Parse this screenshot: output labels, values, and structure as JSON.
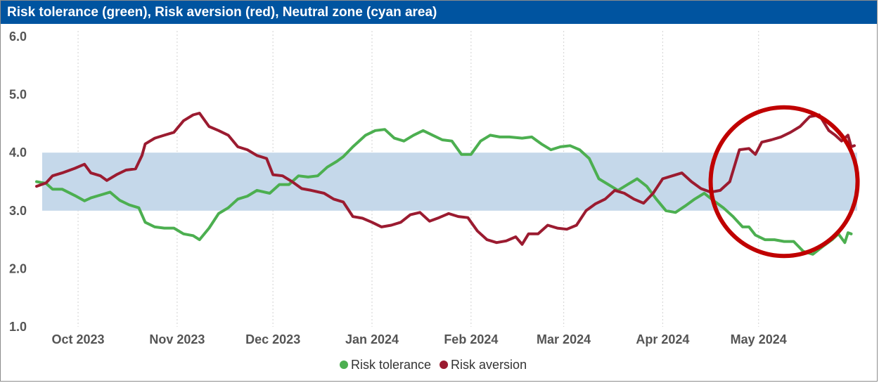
{
  "title": "Risk tolerance (green), Risk aversion (red), Neutral zone (cyan area)",
  "colors": {
    "title_bar": "#0054a0",
    "risk_tolerance": "#4caf50",
    "risk_aversion": "#9b1b30",
    "neutral_zone": "#c5d8ea",
    "highlight_ellipse": "#c00000",
    "gridline": "#d9d9d9"
  },
  "chart_data": {
    "type": "line",
    "title": "Risk tolerance (green), Risk aversion (red), Neutral zone (cyan area)",
    "xlabel": "",
    "ylabel": "",
    "x_range": [
      "2023-09-18",
      "2024-05-31"
    ],
    "ylim": [
      1.0,
      6.0
    ],
    "y_ticks": [
      "6.0",
      "5.0",
      "4.0",
      "3.0",
      "2.0",
      "1.0"
    ],
    "x_ticks": [
      {
        "label": "Oct 2023",
        "date": "2023-10-01"
      },
      {
        "label": "Nov 2023",
        "date": "2023-11-01"
      },
      {
        "label": "Dec 2023",
        "date": "2023-12-01"
      },
      {
        "label": "Jan 2024",
        "date": "2024-01-01"
      },
      {
        "label": "Feb 2024",
        "date": "2024-02-01"
      },
      {
        "label": "Mar 2024",
        "date": "2024-03-01"
      },
      {
        "label": "Apr 2024",
        "date": "2024-04-01"
      },
      {
        "label": "May 2024",
        "date": "2024-05-01"
      }
    ],
    "grid": {
      "vertical": true,
      "style": "dotted",
      "horizontal": false
    },
    "neutral_zone": {
      "from": 3.0,
      "to": 4.0
    },
    "legend_position": "bottom",
    "highlight": {
      "shape": "ellipse",
      "center": [
        "2024-05-09",
        3.5
      ],
      "half_width_days": 23,
      "half_height": 1.28
    },
    "series": [
      {
        "name": "Risk tolerance",
        "color_key": "risk_tolerance",
        "points": [
          [
            "2023-09-18",
            3.5
          ],
          [
            "2023-09-21",
            3.47
          ],
          [
            "2023-09-23",
            3.37
          ],
          [
            "2023-09-26",
            3.37
          ],
          [
            "2023-09-30",
            3.26
          ],
          [
            "2023-10-03",
            3.17
          ],
          [
            "2023-10-05",
            3.22
          ],
          [
            "2023-10-08",
            3.27
          ],
          [
            "2023-10-11",
            3.32
          ],
          [
            "2023-10-14",
            3.18
          ],
          [
            "2023-10-17",
            3.1
          ],
          [
            "2023-10-20",
            3.05
          ],
          [
            "2023-10-22",
            2.8
          ],
          [
            "2023-10-25",
            2.72
          ],
          [
            "2023-10-28",
            2.7
          ],
          [
            "2023-10-31",
            2.7
          ],
          [
            "2023-11-03",
            2.6
          ],
          [
            "2023-11-06",
            2.57
          ],
          [
            "2023-11-08",
            2.5
          ],
          [
            "2023-11-11",
            2.7
          ],
          [
            "2023-11-14",
            2.95
          ],
          [
            "2023-11-17",
            3.05
          ],
          [
            "2023-11-20",
            3.2
          ],
          [
            "2023-11-23",
            3.25
          ],
          [
            "2023-11-26",
            3.35
          ],
          [
            "2023-11-30",
            3.3
          ],
          [
            "2023-12-03",
            3.45
          ],
          [
            "2023-12-06",
            3.45
          ],
          [
            "2023-12-09",
            3.6
          ],
          [
            "2023-12-12",
            3.58
          ],
          [
            "2023-12-15",
            3.6
          ],
          [
            "2023-12-18",
            3.75
          ],
          [
            "2023-12-21",
            3.85
          ],
          [
            "2023-12-23",
            3.93
          ],
          [
            "2023-12-26",
            4.1
          ],
          [
            "2023-12-30",
            4.3
          ],
          [
            "2024-01-02",
            4.38
          ],
          [
            "2024-01-05",
            4.4
          ],
          [
            "2024-01-08",
            4.25
          ],
          [
            "2024-01-11",
            4.2
          ],
          [
            "2024-01-14",
            4.3
          ],
          [
            "2024-01-17",
            4.38
          ],
          [
            "2024-01-20",
            4.3
          ],
          [
            "2024-01-23",
            4.22
          ],
          [
            "2024-01-26",
            4.2
          ],
          [
            "2024-01-29",
            3.97
          ],
          [
            "2024-02-01",
            3.97
          ],
          [
            "2024-02-04",
            4.2
          ],
          [
            "2024-02-07",
            4.3
          ],
          [
            "2024-02-10",
            4.27
          ],
          [
            "2024-02-13",
            4.27
          ],
          [
            "2024-02-17",
            4.25
          ],
          [
            "2024-02-20",
            4.27
          ],
          [
            "2024-02-23",
            4.15
          ],
          [
            "2024-02-26",
            4.05
          ],
          [
            "2024-02-29",
            4.1
          ],
          [
            "2024-03-03",
            4.12
          ],
          [
            "2024-03-06",
            4.05
          ],
          [
            "2024-03-09",
            3.9
          ],
          [
            "2024-03-12",
            3.55
          ],
          [
            "2024-03-15",
            3.45
          ],
          [
            "2024-03-18",
            3.35
          ],
          [
            "2024-03-21",
            3.45
          ],
          [
            "2024-03-24",
            3.55
          ],
          [
            "2024-03-27",
            3.42
          ],
          [
            "2024-03-30",
            3.2
          ],
          [
            "2024-04-02",
            3.0
          ],
          [
            "2024-04-05",
            2.97
          ],
          [
            "2024-04-08",
            3.08
          ],
          [
            "2024-04-11",
            3.2
          ],
          [
            "2024-04-14",
            3.3
          ],
          [
            "2024-04-17",
            3.17
          ],
          [
            "2024-04-20",
            3.05
          ],
          [
            "2024-04-23",
            2.9
          ],
          [
            "2024-04-26",
            2.72
          ],
          [
            "2024-04-28",
            2.72
          ],
          [
            "2024-04-30",
            2.58
          ],
          [
            "2024-05-03",
            2.5
          ],
          [
            "2024-05-06",
            2.5
          ],
          [
            "2024-05-09",
            2.47
          ],
          [
            "2024-05-12",
            2.47
          ],
          [
            "2024-05-15",
            2.3
          ],
          [
            "2024-05-18",
            2.25
          ],
          [
            "2024-05-21",
            2.38
          ],
          [
            "2024-05-24",
            2.5
          ],
          [
            "2024-05-26",
            2.6
          ],
          [
            "2024-05-28",
            2.45
          ],
          [
            "2024-05-29",
            2.62
          ],
          [
            "2024-05-30",
            2.6
          ]
        ]
      },
      {
        "name": "Risk aversion",
        "color_key": "risk_aversion",
        "points": [
          [
            "2023-09-18",
            3.42
          ],
          [
            "2023-09-21",
            3.48
          ],
          [
            "2023-09-23",
            3.6
          ],
          [
            "2023-09-26",
            3.65
          ],
          [
            "2023-09-30",
            3.73
          ],
          [
            "2023-10-03",
            3.8
          ],
          [
            "2023-10-05",
            3.65
          ],
          [
            "2023-10-08",
            3.6
          ],
          [
            "2023-10-10",
            3.52
          ],
          [
            "2023-10-13",
            3.62
          ],
          [
            "2023-10-16",
            3.7
          ],
          [
            "2023-10-19",
            3.72
          ],
          [
            "2023-10-21",
            3.95
          ],
          [
            "2023-10-22",
            4.15
          ],
          [
            "2023-10-25",
            4.25
          ],
          [
            "2023-10-28",
            4.3
          ],
          [
            "2023-10-31",
            4.35
          ],
          [
            "2023-11-03",
            4.55
          ],
          [
            "2023-11-06",
            4.65
          ],
          [
            "2023-11-08",
            4.68
          ],
          [
            "2023-11-11",
            4.45
          ],
          [
            "2023-11-14",
            4.38
          ],
          [
            "2023-11-17",
            4.3
          ],
          [
            "2023-11-20",
            4.1
          ],
          [
            "2023-11-23",
            4.05
          ],
          [
            "2023-11-26",
            3.95
          ],
          [
            "2023-11-29",
            3.9
          ],
          [
            "2023-12-01",
            3.62
          ],
          [
            "2023-12-04",
            3.6
          ],
          [
            "2023-12-07",
            3.5
          ],
          [
            "2023-12-10",
            3.38
          ],
          [
            "2023-12-13",
            3.35
          ],
          [
            "2023-12-17",
            3.3
          ],
          [
            "2023-12-20",
            3.2
          ],
          [
            "2023-12-23",
            3.15
          ],
          [
            "2023-12-26",
            2.9
          ],
          [
            "2023-12-29",
            2.87
          ],
          [
            "2024-01-01",
            2.8
          ],
          [
            "2024-01-04",
            2.72
          ],
          [
            "2024-01-07",
            2.75
          ],
          [
            "2024-01-10",
            2.8
          ],
          [
            "2024-01-13",
            2.93
          ],
          [
            "2024-01-16",
            2.97
          ],
          [
            "2024-01-19",
            2.82
          ],
          [
            "2024-01-22",
            2.88
          ],
          [
            "2024-01-25",
            2.95
          ],
          [
            "2024-01-28",
            2.9
          ],
          [
            "2024-01-31",
            2.88
          ],
          [
            "2024-02-03",
            2.65
          ],
          [
            "2024-02-06",
            2.5
          ],
          [
            "2024-02-09",
            2.45
          ],
          [
            "2024-02-12",
            2.48
          ],
          [
            "2024-02-15",
            2.55
          ],
          [
            "2024-02-17",
            2.42
          ],
          [
            "2024-02-19",
            2.6
          ],
          [
            "2024-02-22",
            2.6
          ],
          [
            "2024-02-25",
            2.75
          ],
          [
            "2024-02-28",
            2.7
          ],
          [
            "2024-03-02",
            2.68
          ],
          [
            "2024-03-05",
            2.75
          ],
          [
            "2024-03-08",
            3.0
          ],
          [
            "2024-03-11",
            3.12
          ],
          [
            "2024-03-14",
            3.2
          ],
          [
            "2024-03-17",
            3.35
          ],
          [
            "2024-03-20",
            3.3
          ],
          [
            "2024-03-23",
            3.2
          ],
          [
            "2024-03-26",
            3.13
          ],
          [
            "2024-03-29",
            3.3
          ],
          [
            "2024-04-01",
            3.55
          ],
          [
            "2024-04-04",
            3.6
          ],
          [
            "2024-04-07",
            3.65
          ],
          [
            "2024-04-10",
            3.5
          ],
          [
            "2024-04-13",
            3.38
          ],
          [
            "2024-04-16",
            3.32
          ],
          [
            "2024-04-19",
            3.35
          ],
          [
            "2024-04-22",
            3.5
          ],
          [
            "2024-04-25",
            4.05
          ],
          [
            "2024-04-28",
            4.07
          ],
          [
            "2024-04-30",
            3.97
          ],
          [
            "2024-05-02",
            4.18
          ],
          [
            "2024-05-05",
            4.22
          ],
          [
            "2024-05-08",
            4.27
          ],
          [
            "2024-05-11",
            4.35
          ],
          [
            "2024-05-14",
            4.45
          ],
          [
            "2024-05-17",
            4.62
          ],
          [
            "2024-05-20",
            4.65
          ],
          [
            "2024-05-23",
            4.38
          ],
          [
            "2024-05-25",
            4.3
          ],
          [
            "2024-05-27",
            4.2
          ],
          [
            "2024-05-29",
            4.3
          ],
          [
            "2024-05-30",
            4.1
          ],
          [
            "2024-05-31",
            4.12
          ]
        ]
      }
    ]
  },
  "legend": [
    {
      "label": "Risk tolerance",
      "color_key": "risk_tolerance"
    },
    {
      "label": "Risk aversion",
      "color_key": "risk_aversion"
    }
  ]
}
